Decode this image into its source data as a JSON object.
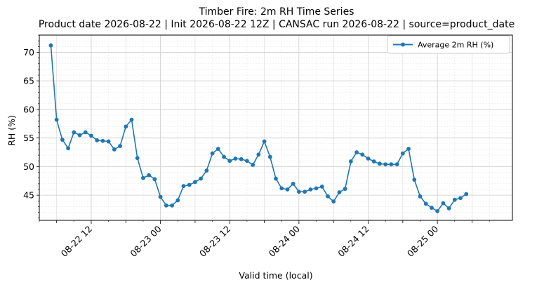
{
  "chart_data": {
    "type": "line",
    "title": "Timber Fire: 2m RH Time Series",
    "subtitle": "Product date 2026-08-22 | Init 2026-08-22 12Z | CANSAC run 2026-08-22 | source=product_date",
    "xlabel": "Valid time (local)",
    "ylabel": "RH (%)",
    "x_start": "2026-08-22 05:00",
    "x_step_hours": 1,
    "xlim": [
      "2026-08-22 03:00",
      "2026-08-25 13:00"
    ],
    "ylim": [
      40.6,
      73
    ],
    "yticks": [
      45,
      50,
      55,
      60,
      65,
      70
    ],
    "xticks": [
      "08-22 12",
      "08-23 00",
      "08-23 12",
      "08-24 00",
      "08-24 12",
      "08-25 00"
    ],
    "grid": true,
    "legend_position": "top-right",
    "colors": {
      "series": "#1f77b4"
    },
    "series": [
      {
        "name": "Average 2m RH (%)",
        "values": [
          71.2,
          58.2,
          54.7,
          53.2,
          56.0,
          55.5,
          56.0,
          55.4,
          54.6,
          54.5,
          54.4,
          53.0,
          53.6,
          57.0,
          58.2,
          51.5,
          48.0,
          48.5,
          47.8,
          44.7,
          43.2,
          43.2,
          44.1,
          46.6,
          46.8,
          47.3,
          47.9,
          49.3,
          52.3,
          53.1,
          51.7,
          51.0,
          51.4,
          51.3,
          51.0,
          50.3,
          52.1,
          54.4,
          51.7,
          47.9,
          46.2,
          46.0,
          47.0,
          45.6,
          45.6,
          46.0,
          46.2,
          46.5,
          44.8,
          43.9,
          45.5,
          46.1,
          50.9,
          52.5,
          52.1,
          51.4,
          50.9,
          50.5,
          50.4,
          50.4,
          50.4,
          52.3,
          53.1,
          47.7,
          44.8,
          43.5,
          42.8,
          42.2,
          43.6,
          42.7,
          44.2,
          44.5,
          45.2
        ]
      }
    ]
  }
}
